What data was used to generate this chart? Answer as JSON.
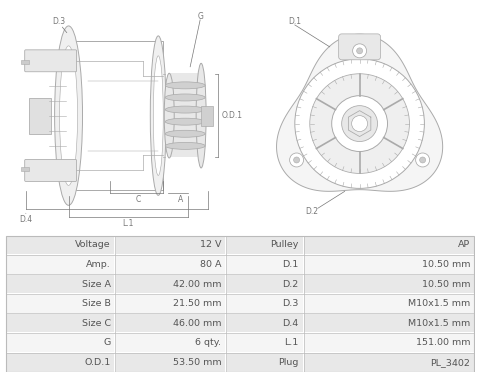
{
  "text_color": "#555555",
  "dim_color": "#777777",
  "line_color": "#999999",
  "table_rows": [
    [
      "Voltage",
      "12 V",
      "Pulley",
      "AP"
    ],
    [
      "Amp.",
      "80 A",
      "D.1",
      "10.50 mm"
    ],
    [
      "Size A",
      "42.00 mm",
      "D.2",
      "10.50 mm"
    ],
    [
      "Size B",
      "21.50 mm",
      "D.3",
      "M10x1.5 mm"
    ],
    [
      "Size C",
      "46.00 mm",
      "D.4",
      "M10x1.5 mm"
    ],
    [
      "G",
      "6 qty.",
      "L.1",
      "151.00 mm"
    ],
    [
      "O.D.1",
      "53.50 mm",
      "Plug",
      "PL_3402"
    ]
  ],
  "row_colors": [
    "#e8e8e8",
    "#f5f5f5",
    "#e8e8e8",
    "#f5f5f5",
    "#e8e8e8",
    "#f5f5f5",
    "#e8e8e8"
  ]
}
